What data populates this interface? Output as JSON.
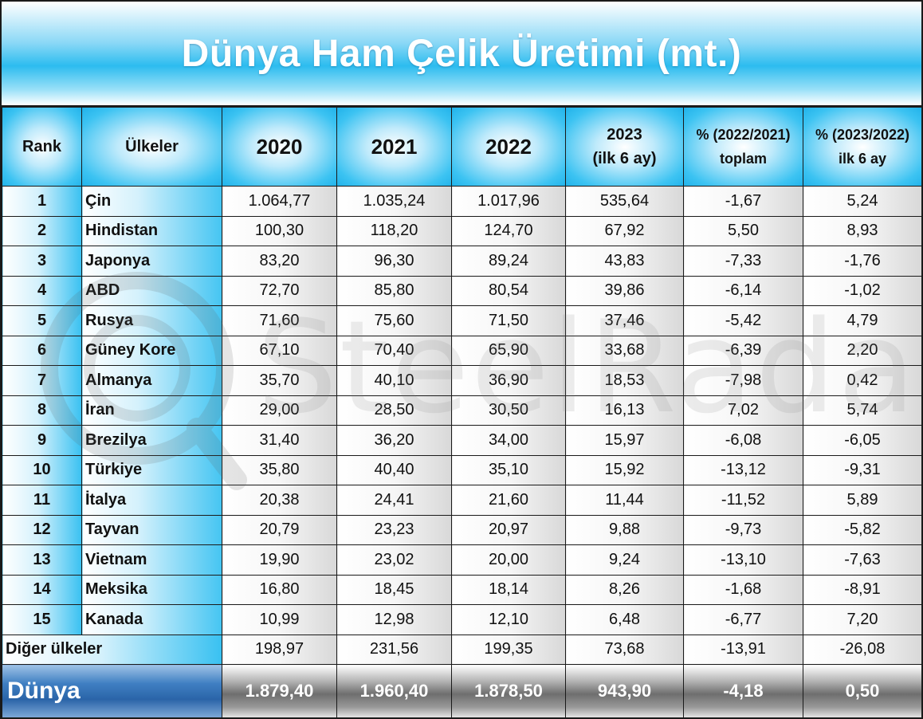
{
  "title": "Dünya Ham Çelik Üretimi (mt.)",
  "watermark_text": "SteelRadar",
  "chart_data": {
    "type": "table",
    "title": "Dünya Ham Çelik Üretimi (mt.)",
    "headers": {
      "rank": "Rank",
      "country": "Ülkeler",
      "y2020": "2020",
      "y2021": "2021",
      "y2022": "2022",
      "y2023_line1": "2023",
      "y2023_line2": "(ilk 6 ay)",
      "pct1_line1": "% (2022/2021)",
      "pct1_line2": "toplam",
      "pct2_line1": "% (2023/2022)",
      "pct2_line2": "ilk 6 ay"
    },
    "rows": [
      {
        "rank": "1",
        "country": "Çin",
        "v2020": "1.064,77",
        "v2021": "1.035,24",
        "v2022": "1.017,96",
        "v2023": "535,64",
        "pct1": "-1,67",
        "pct2": "5,24"
      },
      {
        "rank": "2",
        "country": "Hindistan",
        "v2020": "100,30",
        "v2021": "118,20",
        "v2022": "124,70",
        "v2023": "67,92",
        "pct1": "5,50",
        "pct2": "8,93"
      },
      {
        "rank": "3",
        "country": "Japonya",
        "v2020": "83,20",
        "v2021": "96,30",
        "v2022": "89,24",
        "v2023": "43,83",
        "pct1": "-7,33",
        "pct2": "-1,76"
      },
      {
        "rank": "4",
        "country": "ABD",
        "v2020": "72,70",
        "v2021": "85,80",
        "v2022": "80,54",
        "v2023": "39,86",
        "pct1": "-6,14",
        "pct2": "-1,02"
      },
      {
        "rank": "5",
        "country": "Rusya",
        "v2020": "71,60",
        "v2021": "75,60",
        "v2022": "71,50",
        "v2023": "37,46",
        "pct1": "-5,42",
        "pct2": "4,79"
      },
      {
        "rank": "6",
        "country": "Güney Kore",
        "v2020": "67,10",
        "v2021": "70,40",
        "v2022": "65,90",
        "v2023": "33,68",
        "pct1": "-6,39",
        "pct2": "2,20"
      },
      {
        "rank": "7",
        "country": "Almanya",
        "v2020": "35,70",
        "v2021": "40,10",
        "v2022": "36,90",
        "v2023": "18,53",
        "pct1": "-7,98",
        "pct2": "0,42"
      },
      {
        "rank": "8",
        "country": "İran",
        "v2020": "29,00",
        "v2021": "28,50",
        "v2022": "30,50",
        "v2023": "16,13",
        "pct1": "7,02",
        "pct2": "5,74"
      },
      {
        "rank": "9",
        "country": "Brezilya",
        "v2020": "31,40",
        "v2021": "36,20",
        "v2022": "34,00",
        "v2023": "15,97",
        "pct1": "-6,08",
        "pct2": "-6,05"
      },
      {
        "rank": "10",
        "country": "Türkiye",
        "v2020": "35,80",
        "v2021": "40,40",
        "v2022": "35,10",
        "v2023": "15,92",
        "pct1": "-13,12",
        "pct2": "-9,31"
      },
      {
        "rank": "11",
        "country": "İtalya",
        "v2020": "20,38",
        "v2021": "24,41",
        "v2022": "21,60",
        "v2023": "11,44",
        "pct1": "-11,52",
        "pct2": "5,89"
      },
      {
        "rank": "12",
        "country": "Tayvan",
        "v2020": "20,79",
        "v2021": "23,23",
        "v2022": "20,97",
        "v2023": "9,88",
        "pct1": "-9,73",
        "pct2": "-5,82"
      },
      {
        "rank": "13",
        "country": "Vietnam",
        "v2020": "19,90",
        "v2021": "23,02",
        "v2022": "20,00",
        "v2023": "9,24",
        "pct1": "-13,10",
        "pct2": "-7,63"
      },
      {
        "rank": "14",
        "country": "Meksika",
        "v2020": "16,80",
        "v2021": "18,45",
        "v2022": "18,14",
        "v2023": "8,26",
        "pct1": "-1,68",
        "pct2": "-8,91"
      },
      {
        "rank": "15",
        "country": "Kanada",
        "v2020": "10,99",
        "v2021": "12,98",
        "v2022": "12,10",
        "v2023": "6,48",
        "pct1": "-6,77",
        "pct2": "7,20"
      }
    ],
    "other": {
      "label": "Diğer ülkeler",
      "v2020": "198,97",
      "v2021": "231,56",
      "v2022": "199,35",
      "v2023": "73,68",
      "pct1": "-13,91",
      "pct2": "-26,08"
    },
    "world": {
      "label": "Dünya",
      "v2020": "1.879,40",
      "v2021": "1.960,40",
      "v2022": "1.878,50",
      "v2023": "943,90",
      "pct1": "-4,18",
      "pct2": "0,50"
    }
  }
}
